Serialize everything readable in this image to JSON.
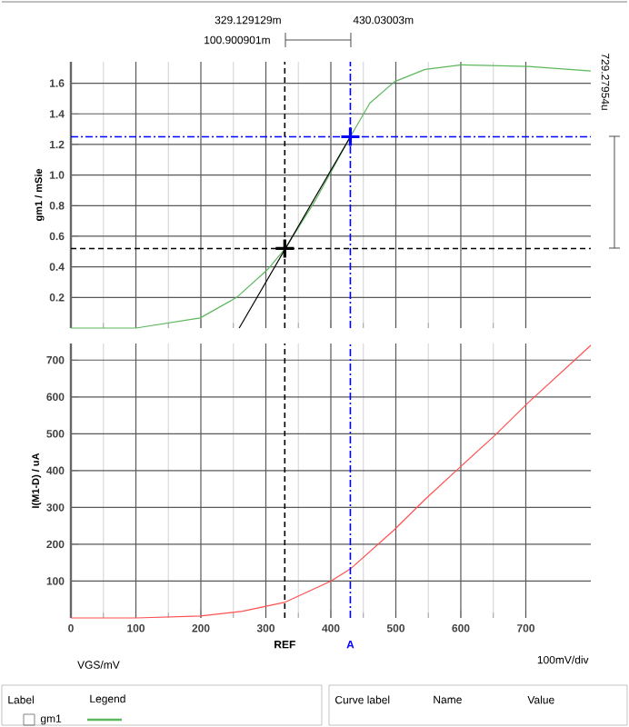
{
  "chart_data": [
    {
      "type": "line",
      "ylabel": "gm1 / mSie",
      "xlim": [
        0,
        800
      ],
      "ylim": [
        0,
        1.74
      ],
      "xticks": [
        0,
        100,
        200,
        300,
        400,
        500,
        600,
        700
      ],
      "yticks": [
        0.2,
        0.4,
        0.6,
        0.8,
        {
          "value": 1.0,
          "label": "1.0"
        },
        1.2,
        1.4,
        1.6
      ],
      "tick_labels": "y",
      "grid": true,
      "legend": "bottom",
      "series": [
        {
          "name": "gm1",
          "color": "#5cb85c",
          "x": [
            0,
            100,
            199,
            255,
            302,
            330,
            377,
            430,
            460,
            498,
            545,
            601,
            704,
            800
          ],
          "values": [
            0,
            0,
            0.066,
            0.2,
            0.38,
            0.52,
            0.84,
            1.25,
            1.47,
            1.61,
            1.69,
            1.72,
            1.71,
            1.68
          ]
        },
        {
          "type": "line",
          "color": "#000000",
          "x": [
            259,
            430
          ],
          "values": [
            0,
            1.25
          ]
        },
        {
          "type": "scatter",
          "marker": "cross",
          "x": [
            329.129,
            430.03
          ],
          "values": [
            0.52,
            1.25
          ],
          "colors": [
            "#000000",
            "#0000ff"
          ]
        }
      ],
      "ref_lines": [
        {
          "axis": "x",
          "value": 329.129,
          "color": "#000000",
          "line_style": "dashed"
        },
        {
          "axis": "x",
          "value": 430.03,
          "color": "#0000ff",
          "line_style": "dashdot"
        },
        {
          "axis": "y",
          "value": 0.52,
          "color": "#000000",
          "line_style": "dashed"
        },
        {
          "axis": "y",
          "value": 1.25,
          "color": "#0000ff",
          "line_style": "dashdot"
        }
      ],
      "annotations": [
        "329.129129m",
        "430.03003m",
        "100.900901m",
        "729.27954u",
        "Label",
        "Legend",
        "Curve label",
        "Name",
        "Value"
      ]
    },
    {
      "type": "line",
      "ylabel": "I(M1-D) / uA",
      "xlabel": "VGS/mV",
      "xlim": [
        0,
        800
      ],
      "ylim": [
        0,
        745
      ],
      "xticks": [
        0,
        100,
        200,
        300,
        400,
        500,
        600,
        700
      ],
      "yticks": [
        100,
        200,
        300,
        400,
        500,
        600,
        700
      ],
      "grid": true,
      "series": [
        {
          "color": "#ff5050",
          "x": [
            0,
            100,
            199,
            264,
            330,
            400,
            430,
            498,
            545,
            601,
            652,
            704,
            800
          ],
          "values": [
            0,
            0,
            5,
            18,
            43,
            100,
            133,
            240,
            322,
            413,
            495,
            585,
            740
          ]
        }
      ],
      "ref_lines": [
        {
          "axis": "x",
          "value": 329.129,
          "color": "#000000",
          "line_style": "dashed",
          "label": "REF"
        },
        {
          "axis": "x",
          "value": 430.03,
          "color": "#0000ff",
          "line_style": "dashdot",
          "label": "A"
        }
      ],
      "annotations": [
        "100mV/div"
      ]
    }
  ]
}
